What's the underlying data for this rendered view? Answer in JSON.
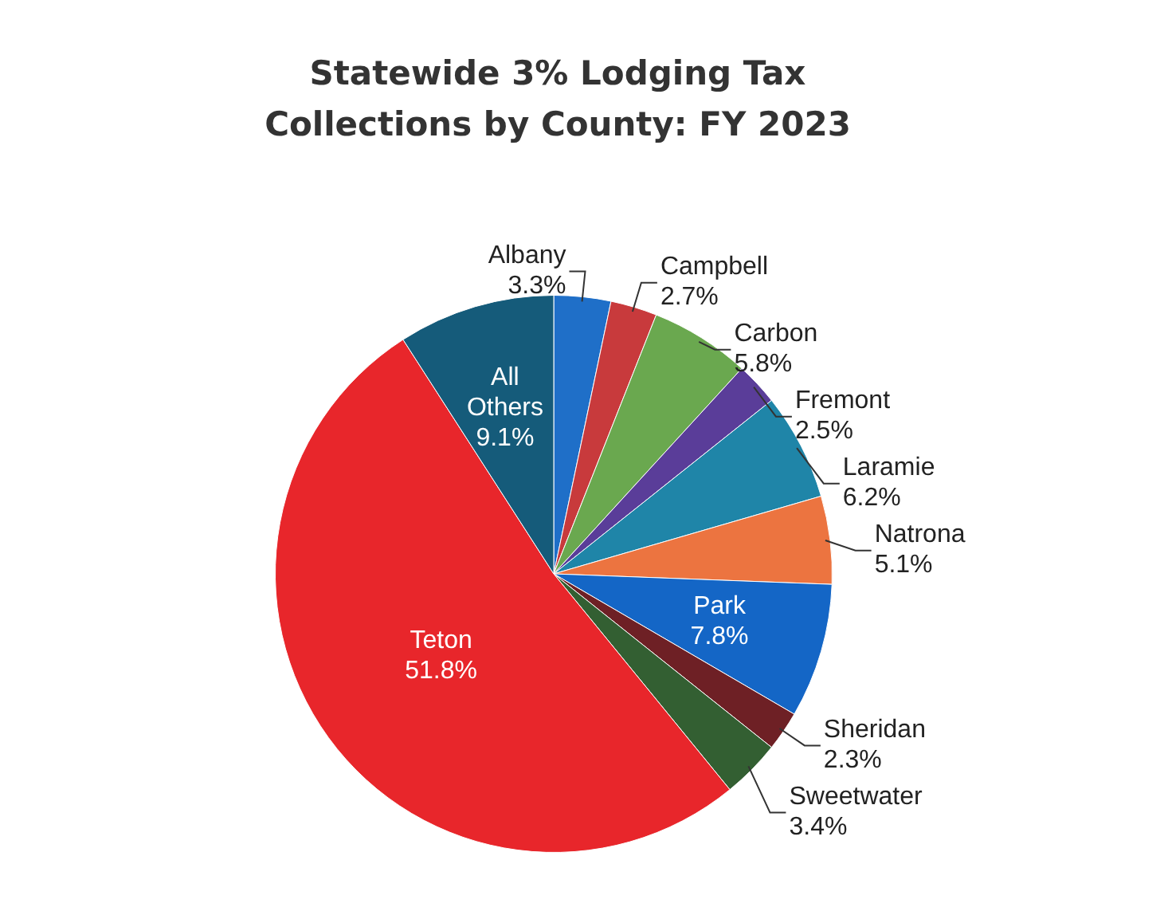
{
  "chart_data": {
    "type": "pie",
    "title": "Statewide 3% Lodging Tax Collections by County: FY 2023",
    "categories": [
      "Albany",
      "Campbell",
      "Carbon",
      "Fremont",
      "Laramie",
      "Natrona",
      "Park",
      "Sheridan",
      "Sweetwater",
      "Teton",
      "All Others"
    ],
    "values": [
      3.3,
      2.7,
      5.8,
      2.5,
      6.2,
      5.1,
      7.8,
      2.3,
      3.4,
      51.8,
      9.1
    ],
    "value_labels": [
      "3.3%",
      "2.7%",
      "5.8%",
      "2.5%",
      "6.2%",
      "5.1%",
      "7.8%",
      "2.3%",
      "3.4%",
      "51.8%",
      "9.1%"
    ],
    "colors": [
      "#1f6fc8",
      "#c83a3c",
      "#6aa84f",
      "#5a3d99",
      "#1f85a8",
      "#ec7440",
      "#1466c6",
      "#6e2025",
      "#335f32",
      "#e8262b",
      "#155b7a"
    ],
    "legend": false
  }
}
